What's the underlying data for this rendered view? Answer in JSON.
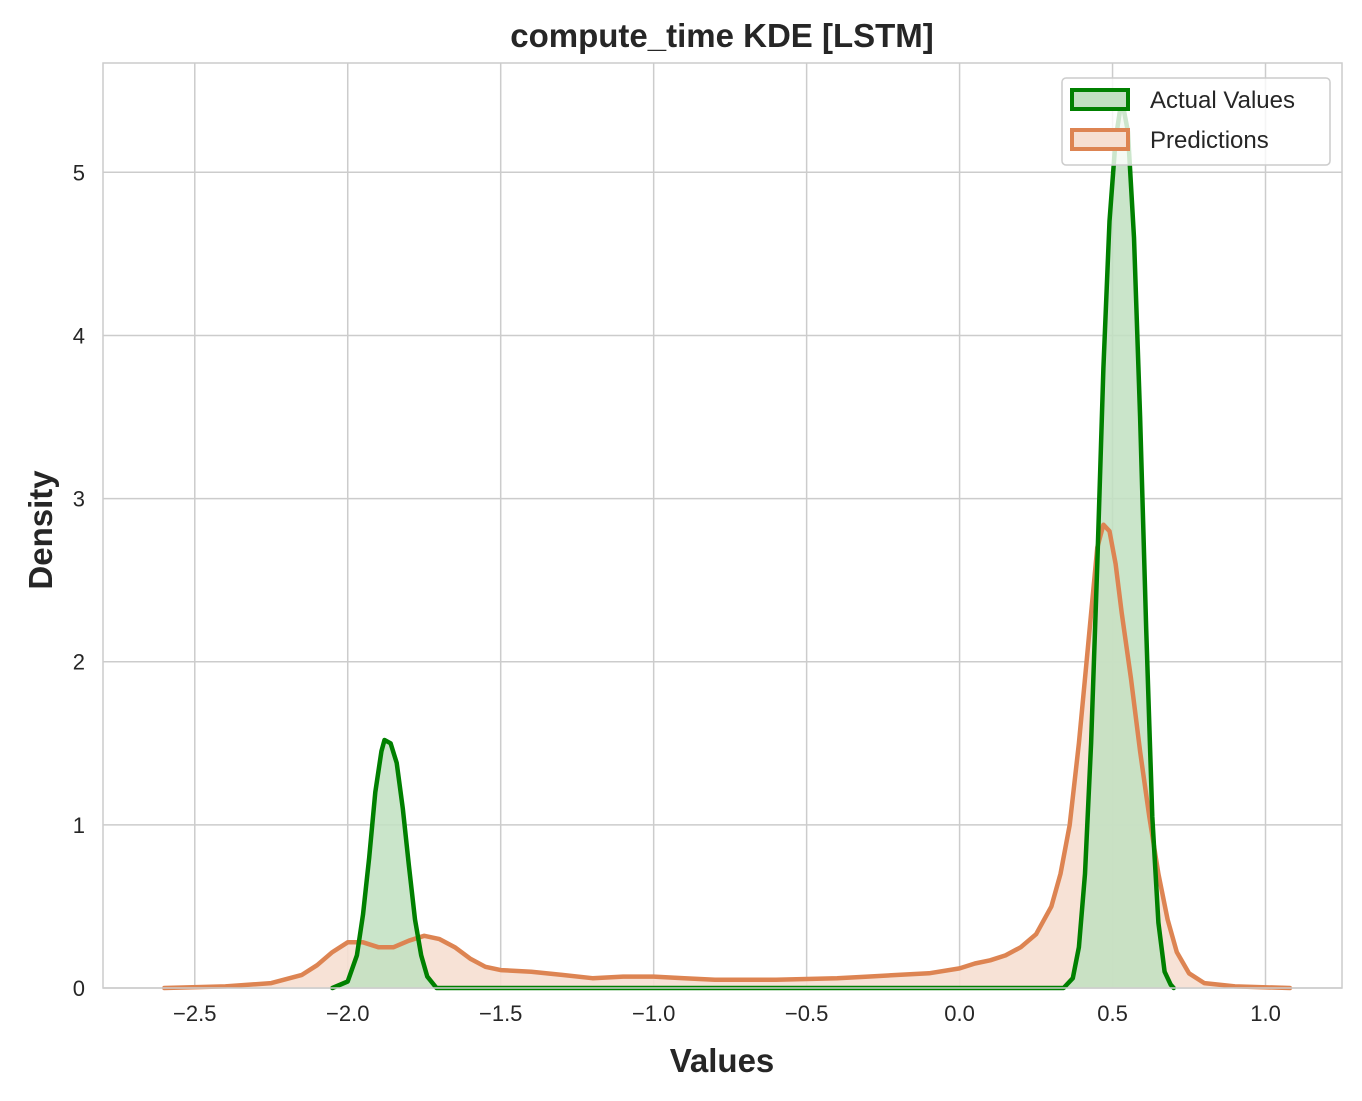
{
  "chart_data": {
    "type": "area",
    "title": "compute_time KDE [LSTM]",
    "xlabel": "Values",
    "ylabel": "Density",
    "xlim": [
      -2.8,
      1.25
    ],
    "ylim": [
      0,
      5.67
    ],
    "x_ticks": [
      -2.5,
      -2.0,
      -1.5,
      -1.0,
      -0.5,
      0.0,
      0.5,
      1.0
    ],
    "x_tick_labels": [
      "−2.5",
      "−2.0",
      "−1.5",
      "−1.0",
      "−0.5",
      "0.0",
      "0.5",
      "1.0"
    ],
    "y_ticks": [
      0,
      1,
      2,
      3,
      4,
      5
    ],
    "y_tick_labels": [
      "0",
      "1",
      "2",
      "3",
      "4",
      "5"
    ],
    "grid": true,
    "legend_position": "top-right",
    "series": [
      {
        "name": "Actual Values",
        "color": "#008000",
        "fill": "#c1e0c1",
        "points": [
          [
            -2.05,
            0.0
          ],
          [
            -2.0,
            0.04
          ],
          [
            -1.97,
            0.2
          ],
          [
            -1.95,
            0.45
          ],
          [
            -1.93,
            0.8
          ],
          [
            -1.91,
            1.2
          ],
          [
            -1.89,
            1.45
          ],
          [
            -1.88,
            1.52
          ],
          [
            -1.86,
            1.5
          ],
          [
            -1.84,
            1.38
          ],
          [
            -1.82,
            1.1
          ],
          [
            -1.8,
            0.75
          ],
          [
            -1.78,
            0.42
          ],
          [
            -1.76,
            0.2
          ],
          [
            -1.74,
            0.07
          ],
          [
            -1.71,
            0.0
          ],
          [
            0.34,
            0.0
          ],
          [
            0.37,
            0.06
          ],
          [
            0.39,
            0.25
          ],
          [
            0.41,
            0.7
          ],
          [
            0.43,
            1.5
          ],
          [
            0.45,
            2.6
          ],
          [
            0.47,
            3.8
          ],
          [
            0.49,
            4.7
          ],
          [
            0.51,
            5.2
          ],
          [
            0.53,
            5.45
          ],
          [
            0.55,
            5.25
          ],
          [
            0.57,
            4.6
          ],
          [
            0.59,
            3.5
          ],
          [
            0.61,
            2.2
          ],
          [
            0.63,
            1.05
          ],
          [
            0.65,
            0.4
          ],
          [
            0.67,
            0.1
          ],
          [
            0.69,
            0.02
          ],
          [
            0.7,
            0.0
          ]
        ]
      },
      {
        "name": "Predictions",
        "color": "#dd8452",
        "fill": "#f6dfd2",
        "points": [
          [
            -2.6,
            0.0
          ],
          [
            -2.4,
            0.01
          ],
          [
            -2.25,
            0.03
          ],
          [
            -2.15,
            0.08
          ],
          [
            -2.1,
            0.14
          ],
          [
            -2.05,
            0.22
          ],
          [
            -2.0,
            0.28
          ],
          [
            -1.95,
            0.28
          ],
          [
            -1.9,
            0.25
          ],
          [
            -1.85,
            0.25
          ],
          [
            -1.8,
            0.29
          ],
          [
            -1.75,
            0.32
          ],
          [
            -1.7,
            0.3
          ],
          [
            -1.65,
            0.25
          ],
          [
            -1.6,
            0.18
          ],
          [
            -1.55,
            0.13
          ],
          [
            -1.5,
            0.11
          ],
          [
            -1.4,
            0.1
          ],
          [
            -1.3,
            0.08
          ],
          [
            -1.2,
            0.06
          ],
          [
            -1.1,
            0.07
          ],
          [
            -1.0,
            0.07
          ],
          [
            -0.9,
            0.06
          ],
          [
            -0.8,
            0.05
          ],
          [
            -0.6,
            0.05
          ],
          [
            -0.4,
            0.06
          ],
          [
            -0.3,
            0.07
          ],
          [
            -0.2,
            0.08
          ],
          [
            -0.1,
            0.09
          ],
          [
            0.0,
            0.12
          ],
          [
            0.05,
            0.15
          ],
          [
            0.1,
            0.17
          ],
          [
            0.15,
            0.2
          ],
          [
            0.2,
            0.25
          ],
          [
            0.25,
            0.33
          ],
          [
            0.3,
            0.5
          ],
          [
            0.33,
            0.7
          ],
          [
            0.36,
            1.0
          ],
          [
            0.39,
            1.5
          ],
          [
            0.42,
            2.1
          ],
          [
            0.45,
            2.7
          ],
          [
            0.47,
            2.84
          ],
          [
            0.49,
            2.8
          ],
          [
            0.51,
            2.6
          ],
          [
            0.53,
            2.3
          ],
          [
            0.56,
            1.9
          ],
          [
            0.59,
            1.45
          ],
          [
            0.62,
            1.05
          ],
          [
            0.65,
            0.7
          ],
          [
            0.68,
            0.42
          ],
          [
            0.71,
            0.22
          ],
          [
            0.75,
            0.09
          ],
          [
            0.8,
            0.03
          ],
          [
            0.9,
            0.01
          ],
          [
            1.08,
            0.0
          ]
        ]
      }
    ]
  }
}
